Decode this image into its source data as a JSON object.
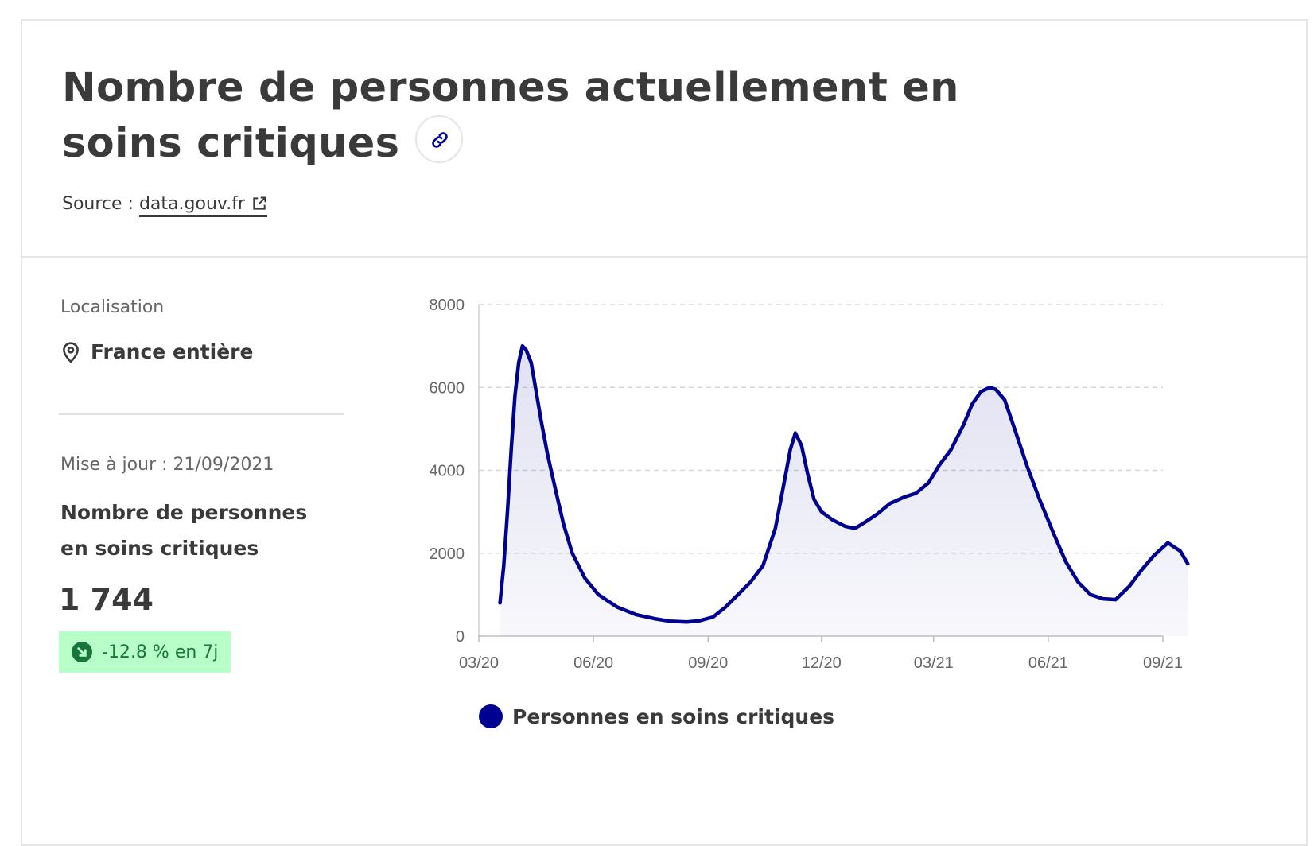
{
  "header": {
    "title": "Nombre de personnes actuellement en soins critiques",
    "source_label": "Source :",
    "source_link": "data.gouv.fr"
  },
  "sidebar": {
    "location_label": "Localisation",
    "location_value": "France entière",
    "updated": "Mise à jour : 21/09/2021",
    "metric_label": "Nombre de personnes en soins critiques",
    "metric_value": "1 744",
    "trend": "-12.8 % en 7j"
  },
  "colors": {
    "series": "#000091",
    "trend_bg": "#b8fec9",
    "trend_text": "#18753c"
  },
  "icons": [
    "link-icon",
    "external-link-icon",
    "map-pin-icon",
    "arrow-down-right-icon"
  ],
  "chart_data": {
    "type": "area",
    "title": "",
    "xlabel": "",
    "ylabel": "",
    "ylim": [
      0,
      8000
    ],
    "yticks": [
      "0",
      "2000",
      "4000",
      "6000",
      "8000"
    ],
    "xticks": [
      "03/20",
      "06/20",
      "09/20",
      "12/20",
      "03/21",
      "06/21",
      "09/21"
    ],
    "grid": "horizontal dashed",
    "legend": "bottom",
    "series": [
      {
        "name": "Personnes en soins critiques",
        "x": [
          "2020-03-18",
          "2020-03-21",
          "2020-03-24",
          "2020-03-27",
          "2020-03-30",
          "2020-04-02",
          "2020-04-05",
          "2020-04-08",
          "2020-04-12",
          "2020-04-16",
          "2020-04-20",
          "2020-04-25",
          "2020-05-01",
          "2020-05-08",
          "2020-05-15",
          "2020-05-25",
          "2020-06-05",
          "2020-06-20",
          "2020-07-05",
          "2020-07-20",
          "2020-08-01",
          "2020-08-15",
          "2020-08-25",
          "2020-09-05",
          "2020-09-15",
          "2020-09-25",
          "2020-10-05",
          "2020-10-15",
          "2020-10-25",
          "2020-11-01",
          "2020-11-06",
          "2020-11-10",
          "2020-11-15",
          "2020-11-20",
          "2020-11-25",
          "2020-12-01",
          "2020-12-10",
          "2020-12-20",
          "2020-12-28",
          "2021-01-05",
          "2021-01-15",
          "2021-01-25",
          "2021-02-05",
          "2021-02-15",
          "2021-02-25",
          "2021-03-05",
          "2021-03-15",
          "2021-03-25",
          "2021-04-01",
          "2021-04-08",
          "2021-04-15",
          "2021-04-20",
          "2021-04-27",
          "2021-05-05",
          "2021-05-15",
          "2021-05-25",
          "2021-06-05",
          "2021-06-15",
          "2021-06-25",
          "2021-07-05",
          "2021-07-15",
          "2021-07-25",
          "2021-08-05",
          "2021-08-15",
          "2021-08-25",
          "2021-09-05",
          "2021-09-15",
          "2021-09-21"
        ],
        "values": [
          800,
          1700,
          3000,
          4500,
          5800,
          6600,
          7000,
          6900,
          6600,
          5900,
          5200,
          4400,
          3600,
          2700,
          2000,
          1400,
          1000,
          700,
          520,
          420,
          360,
          340,
          370,
          460,
          700,
          1000,
          1300,
          1700,
          2600,
          3700,
          4500,
          4900,
          4600,
          3900,
          3300,
          3000,
          2800,
          2650,
          2600,
          2750,
          2950,
          3200,
          3350,
          3450,
          3700,
          4100,
          4500,
          5100,
          5600,
          5900,
          6000,
          5950,
          5700,
          5000,
          4100,
          3300,
          2500,
          1800,
          1300,
          1000,
          900,
          880,
          1200,
          1600,
          1950,
          2250,
          2050,
          1744
        ]
      }
    ]
  }
}
